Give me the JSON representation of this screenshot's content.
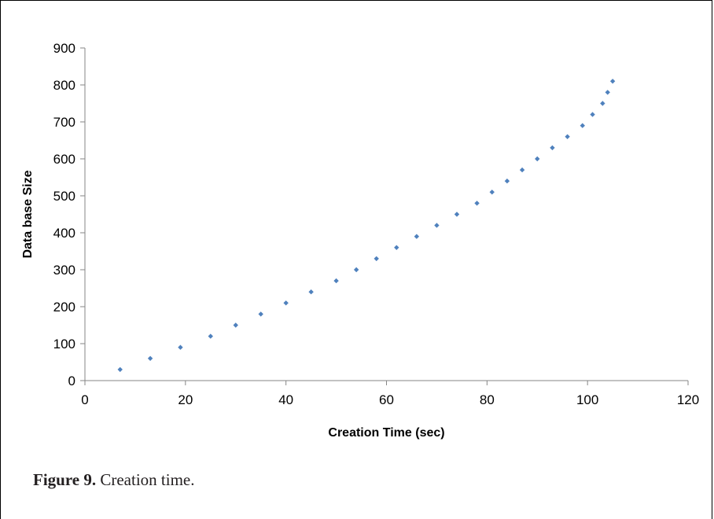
{
  "chart_data": {
    "type": "scatter",
    "xlabel": "Creation Time (sec)",
    "ylabel": "Data base Size",
    "xlim": [
      0,
      120
    ],
    "ylim": [
      0,
      900
    ],
    "xticks": [
      0,
      20,
      40,
      60,
      80,
      100,
      120
    ],
    "yticks": [
      0,
      100,
      200,
      300,
      400,
      500,
      600,
      700,
      800,
      900
    ],
    "grid": false,
    "legend": "none",
    "marker_color": "#4f81bd",
    "series": [
      {
        "points": [
          [
            7,
            30
          ],
          [
            13,
            60
          ],
          [
            19,
            90
          ],
          [
            25,
            120
          ],
          [
            30,
            150
          ],
          [
            35,
            180
          ],
          [
            40,
            210
          ],
          [
            45,
            240
          ],
          [
            50,
            270
          ],
          [
            54,
            300
          ],
          [
            58,
            330
          ],
          [
            62,
            360
          ],
          [
            66,
            390
          ],
          [
            70,
            420
          ],
          [
            74,
            450
          ],
          [
            78,
            480
          ],
          [
            81,
            510
          ],
          [
            84,
            540
          ],
          [
            87,
            570
          ],
          [
            90,
            600
          ],
          [
            93,
            630
          ],
          [
            96,
            660
          ],
          [
            99,
            690
          ],
          [
            101,
            720
          ],
          [
            103,
            750
          ],
          [
            104,
            780
          ],
          [
            105,
            810
          ]
        ]
      }
    ]
  },
  "caption": {
    "label": "Figure 9.",
    "text": " Creation time."
  }
}
